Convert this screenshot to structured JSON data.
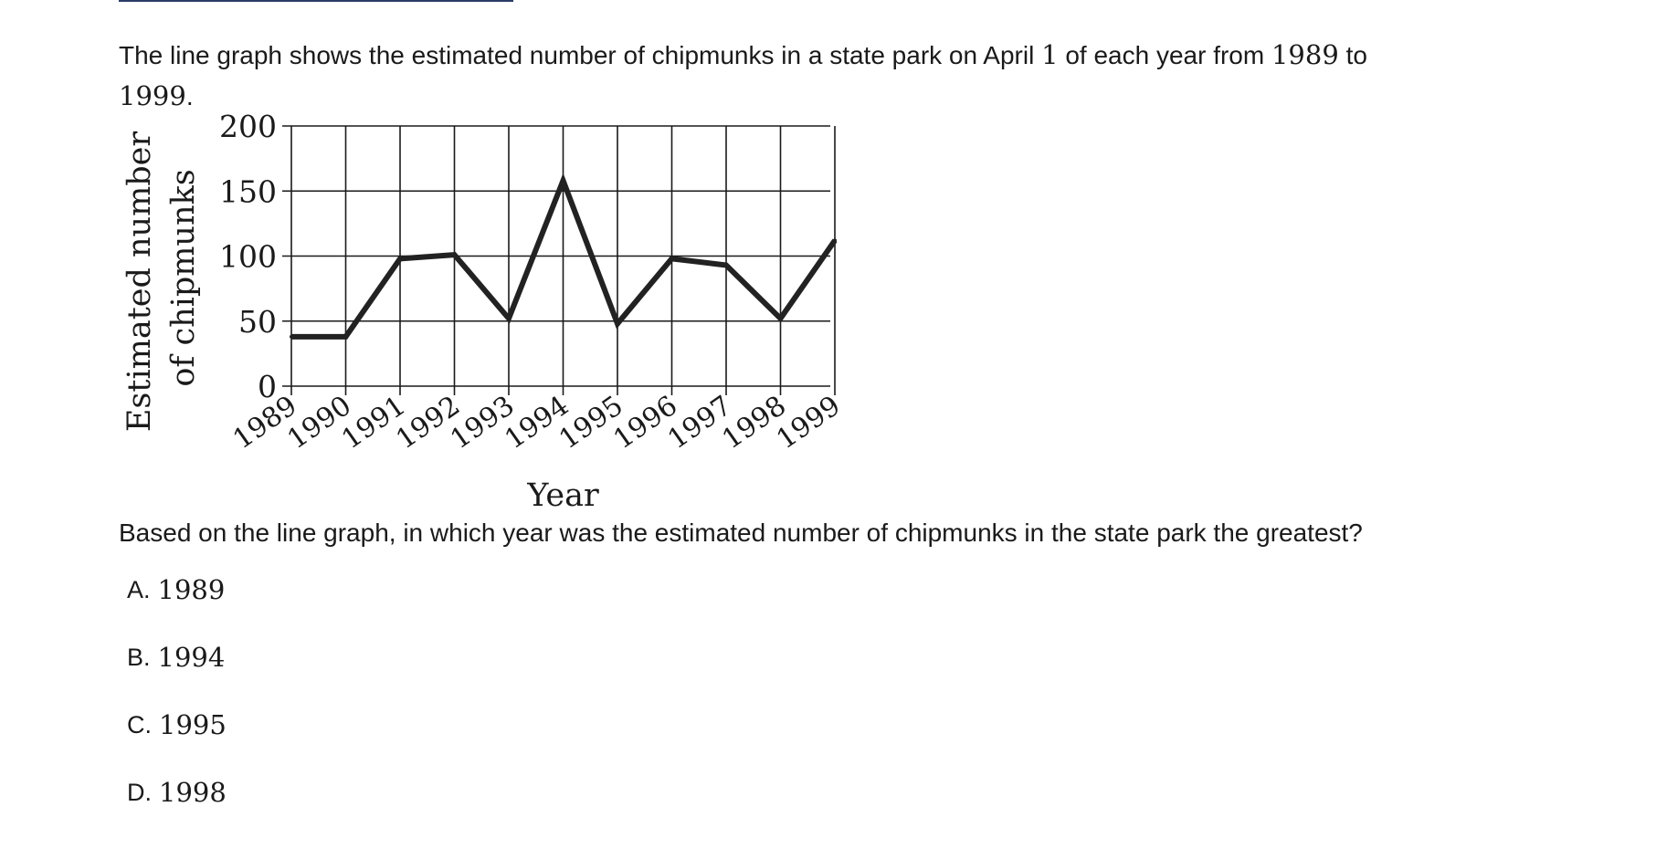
{
  "prompt": {
    "part1": "The line graph shows the estimated number of chipmunks in a state park on April ",
    "num1": "1",
    "part2": " of each year from ",
    "num2": "1989",
    "part3": " to",
    "num3": "1999",
    "part4": "."
  },
  "chart_data": {
    "type": "line",
    "title": "",
    "xlabel": "Year",
    "ylabel_lines": [
      "Estimated number",
      "of chipmunks"
    ],
    "x": [
      1989,
      1990,
      1991,
      1992,
      1993,
      1994,
      1995,
      1996,
      1997,
      1998,
      1999
    ],
    "x_tick_labels": [
      "1989",
      "1990",
      "1991",
      "1992",
      "1993",
      "1994",
      "1995",
      "1996",
      "1997",
      "1998",
      "1999"
    ],
    "y_ticks": [
      0,
      50,
      100,
      150,
      200
    ],
    "y_tick_labels": [
      "0",
      "50",
      "100",
      "150",
      "200"
    ],
    "ylim": [
      0,
      200
    ],
    "series": [
      {
        "values": [
          38,
          38,
          98,
          101,
          52,
          158,
          48,
          98,
          93,
          52,
          112
        ]
      }
    ],
    "grid": true,
    "line_color": "#222222"
  },
  "question": "Based on the line graph, in which year was the estimated number of chipmunks in the state park the greatest?",
  "choices": [
    {
      "letter": "A.",
      "text": "1989"
    },
    {
      "letter": "B.",
      "text": "1994"
    },
    {
      "letter": "C.",
      "text": "1995"
    },
    {
      "letter": "D.",
      "text": "1998"
    }
  ]
}
